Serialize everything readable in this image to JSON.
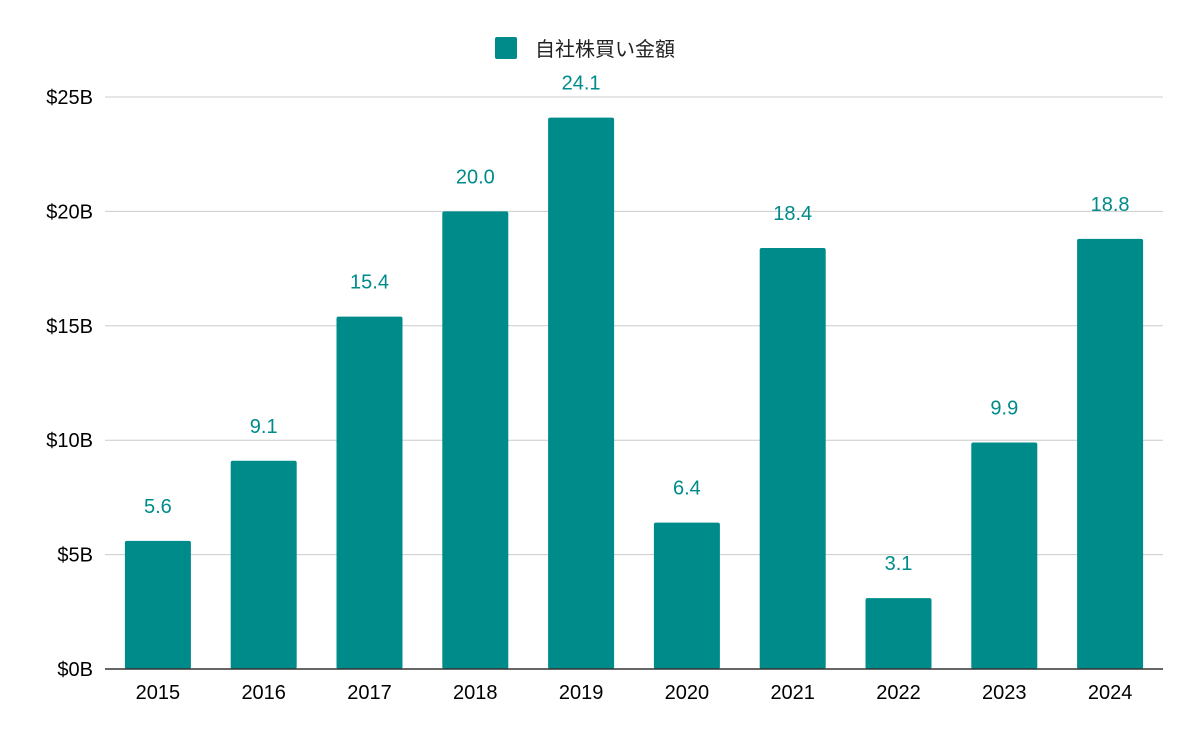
{
  "chart_data": {
    "type": "bar",
    "categories": [
      "2015",
      "2016",
      "2017",
      "2018",
      "2019",
      "2020",
      "2021",
      "2022",
      "2023",
      "2024"
    ],
    "series": [
      {
        "name": "自社株買い金額",
        "values": [
          5.6,
          9.1,
          15.4,
          20.0,
          24.1,
          6.4,
          18.4,
          3.1,
          9.9,
          18.8
        ],
        "data_labels": [
          "5.6",
          "9.1",
          "15.4",
          "20.0",
          "24.1",
          "6.4",
          "18.4",
          "3.1",
          "9.9",
          "18.8"
        ]
      }
    ],
    "title": "",
    "xlabel": "",
    "ylabel": "",
    "ylim": [
      0,
      25
    ],
    "yticks": [
      0,
      5,
      10,
      15,
      20,
      25
    ],
    "ytick_labels": [
      "$0B",
      "$5B",
      "$10B",
      "$15B",
      "$20B",
      "$25B"
    ],
    "grid": true,
    "legend_position": "top-center",
    "colors": {
      "bar": "#008b8b",
      "data_label": "#008b8b",
      "grid": "#cccccc",
      "axis": "#333333"
    }
  }
}
